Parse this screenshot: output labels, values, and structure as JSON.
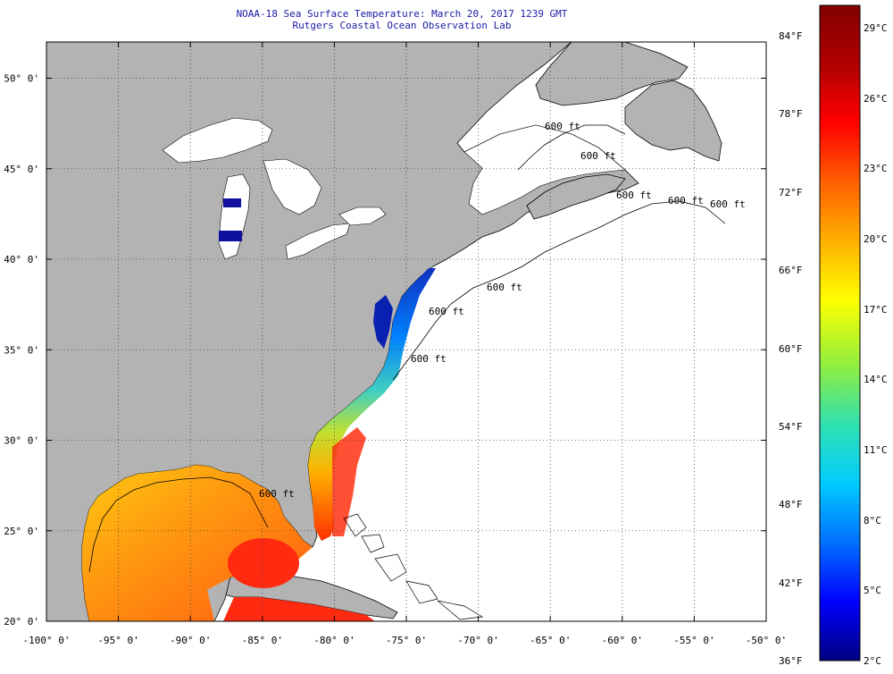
{
  "title_line1": "NOAA-18 Sea Surface Temperature:  March 20, 2017 1239 GMT",
  "title_line2": "Rutgers Coastal Ocean Observation Lab",
  "map": {
    "lon_range": [
      -100,
      -50
    ],
    "lat_range": [
      20,
      52
    ],
    "lon_ticks": [
      {
        "value": -100,
        "label": "-100° 0'"
      },
      {
        "value": -95,
        "label": "-95° 0'"
      },
      {
        "value": -90,
        "label": "-90° 0'"
      },
      {
        "value": -85,
        "label": "-85° 0'"
      },
      {
        "value": -80,
        "label": "-80° 0'"
      },
      {
        "value": -75,
        "label": "-75° 0'"
      },
      {
        "value": -70,
        "label": "-70° 0'"
      },
      {
        "value": -65,
        "label": "-65° 0'"
      },
      {
        "value": -60,
        "label": "-60° 0'"
      },
      {
        "value": -55,
        "label": "-55° 0'"
      },
      {
        "value": -50,
        "label": "-50° 0'"
      }
    ],
    "lat_ticks": [
      {
        "value": 20,
        "label": "20° 0'"
      },
      {
        "value": 25,
        "label": "25° 0'"
      },
      {
        "value": 30,
        "label": "30° 0'"
      },
      {
        "value": 35,
        "label": "35° 0'"
      },
      {
        "value": 40,
        "label": "40° 0'"
      },
      {
        "value": 45,
        "label": "45° 0'"
      },
      {
        "value": 50,
        "label": "50° 0'"
      }
    ],
    "contour_labels": [
      "600 ft",
      "600 ft",
      "600 ft",
      "600 ft",
      "600 ft",
      "600 ft",
      "600 ft",
      "600 ft",
      "600 ft"
    ],
    "colors": {
      "land": "#b3b3b3",
      "no_data": "#ffffff",
      "coast": "#000000",
      "grid": "#555555"
    }
  },
  "colorbar": {
    "fahrenheit_labels": [
      "84°F",
      "78°F",
      "72°F",
      "66°F",
      "60°F",
      "54°F",
      "48°F",
      "42°F",
      "36°F"
    ],
    "celsius_labels": [
      "29°C",
      "26°C",
      "23°C",
      "20°C",
      "17°C",
      "14°C",
      "11°C",
      "8°C",
      "5°C",
      "2°C"
    ],
    "gradient": [
      "#000080",
      "#0000ff",
      "#0070ff",
      "#00ccff",
      "#30e0b0",
      "#90ee40",
      "#ffff00",
      "#ffb000",
      "#ff6000",
      "#ff0000",
      "#b00000",
      "#800000"
    ]
  }
}
